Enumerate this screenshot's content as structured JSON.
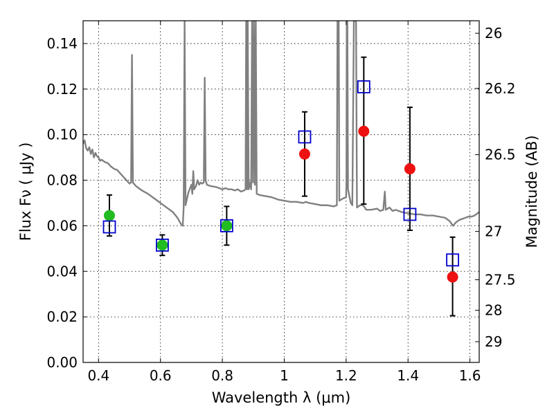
{
  "chart_data": {
    "type": "scatter",
    "xlabel": "Wavelength  λ (μm)",
    "ylabel": "Flux  Fν  ( μJy )",
    "ylabel_right": "Magnitude (AB)",
    "xlim": [
      0.35,
      1.63
    ],
    "ylim": [
      0.0,
      0.15
    ],
    "x_ticks": [
      {
        "value": 0.4,
        "label": "0.4"
      },
      {
        "value": 0.6,
        "label": "0.6"
      },
      {
        "value": 0.8,
        "label": "0.8"
      },
      {
        "value": 1.0,
        "label": "1"
      },
      {
        "value": 1.2,
        "label": "1.2"
      },
      {
        "value": 1.4,
        "label": "1.4"
      },
      {
        "value": 1.6,
        "label": "1.6"
      }
    ],
    "y_ticks": [
      {
        "value": 0.0,
        "label": "0.00"
      },
      {
        "value": 0.02,
        "label": "0.02"
      },
      {
        "value": 0.04,
        "label": "0.04"
      },
      {
        "value": 0.06,
        "label": "0.06"
      },
      {
        "value": 0.08,
        "label": "0.08"
      },
      {
        "value": 0.1,
        "label": "0.10"
      },
      {
        "value": 0.12,
        "label": "0.12"
      },
      {
        "value": 0.14,
        "label": "0.14"
      }
    ],
    "right_ticks": [
      {
        "flux": 0.1445,
        "label": "26"
      },
      {
        "flux": 0.1203,
        "label": "26.2"
      },
      {
        "flux": 0.0912,
        "label": "26.5"
      },
      {
        "flux": 0.0575,
        "label": "27"
      },
      {
        "flux": 0.0363,
        "label": "27.5"
      },
      {
        "flux": 0.0229,
        "label": "28"
      },
      {
        "flux": 0.0091,
        "label": "29"
      }
    ],
    "grid": true,
    "colors": {
      "sed": "#808080",
      "observed_detected": "#22bb22",
      "observed_upper": "#ee1111",
      "model_squares": "#0000cc",
      "error_bars": "#000000"
    },
    "series": [
      {
        "marker": "square",
        "points": [
          {
            "x": 0.435,
            "y": 0.0595
          },
          {
            "x": 0.606,
            "y": 0.0515
          },
          {
            "x": 0.814,
            "y": 0.06
          },
          {
            "x": 1.066,
            "y": 0.099
          },
          {
            "x": 1.257,
            "y": 0.121
          },
          {
            "x": 1.406,
            "y": 0.065
          },
          {
            "x": 1.544,
            "y": 0.045
          }
        ]
      },
      {
        "marker": "circle",
        "color_key": "observed_detected",
        "points": [
          {
            "x": 0.435,
            "y": 0.0645,
            "ylo": 0.0555,
            "yhi": 0.0735
          },
          {
            "x": 0.606,
            "y": 0.0515,
            "ylo": 0.047,
            "yhi": 0.056
          },
          {
            "x": 0.814,
            "y": 0.06,
            "ylo": 0.0515,
            "yhi": 0.0685
          }
        ]
      },
      {
        "marker": "circle",
        "color_key": "observed_upper",
        "points": [
          {
            "x": 1.066,
            "y": 0.0915,
            "ylo": 0.073,
            "yhi": 0.11
          },
          {
            "x": 1.257,
            "y": 0.1015,
            "ylo": 0.0695,
            "yhi": 0.134
          },
          {
            "x": 1.406,
            "y": 0.085,
            "ylo": 0.058,
            "yhi": 0.112
          },
          {
            "x": 1.544,
            "y": 0.0375,
            "ylo": 0.0205,
            "yhi": 0.055
          }
        ]
      }
    ],
    "sed_curve": [
      [
        0.35,
        0.096
      ],
      [
        0.355,
        0.0975
      ],
      [
        0.36,
        0.094
      ],
      [
        0.365,
        0.093
      ],
      [
        0.37,
        0.0945
      ],
      [
        0.375,
        0.0915
      ],
      [
        0.38,
        0.0935
      ],
      [
        0.385,
        0.09
      ],
      [
        0.39,
        0.092
      ],
      [
        0.395,
        0.0905
      ],
      [
        0.4,
        0.09
      ],
      [
        0.405,
        0.0885
      ],
      [
        0.41,
        0.089
      ],
      [
        0.42,
        0.088
      ],
      [
        0.43,
        0.0875
      ],
      [
        0.44,
        0.086
      ],
      [
        0.45,
        0.085
      ],
      [
        0.46,
        0.0845
      ],
      [
        0.47,
        0.083
      ],
      [
        0.48,
        0.0815
      ],
      [
        0.49,
        0.08
      ],
      [
        0.5,
        0.0785
      ],
      [
        0.505,
        0.079
      ],
      [
        0.508,
        0.135
      ],
      [
        0.511,
        0.079
      ],
      [
        0.52,
        0.0775
      ],
      [
        0.54,
        0.0755
      ],
      [
        0.56,
        0.074
      ],
      [
        0.58,
        0.072
      ],
      [
        0.6,
        0.07
      ],
      [
        0.62,
        0.068
      ],
      [
        0.64,
        0.066
      ],
      [
        0.655,
        0.0635
      ],
      [
        0.665,
        0.061
      ],
      [
        0.672,
        0.06
      ],
      [
        0.675,
        0.068
      ],
      [
        0.678,
        0.15
      ],
      [
        0.681,
        0.069
      ],
      [
        0.69,
        0.0745
      ],
      [
        0.7,
        0.078
      ],
      [
        0.703,
        0.074
      ],
      [
        0.706,
        0.084
      ],
      [
        0.709,
        0.076
      ],
      [
        0.715,
        0.0775
      ],
      [
        0.72,
        0.08
      ],
      [
        0.725,
        0.078
      ],
      [
        0.73,
        0.079
      ],
      [
        0.735,
        0.0785
      ],
      [
        0.74,
        0.079
      ],
      [
        0.743,
        0.125
      ],
      [
        0.746,
        0.08
      ],
      [
        0.75,
        0.078
      ],
      [
        0.76,
        0.0775
      ],
      [
        0.78,
        0.077
      ],
      [
        0.8,
        0.076
      ],
      [
        0.81,
        0.0765
      ],
      [
        0.82,
        0.076
      ],
      [
        0.83,
        0.076
      ],
      [
        0.84,
        0.0755
      ],
      [
        0.85,
        0.076
      ],
      [
        0.86,
        0.075
      ],
      [
        0.87,
        0.0755
      ],
      [
        0.875,
        0.076
      ],
      [
        0.877,
        0.15
      ],
      [
        0.88,
        0.076
      ],
      [
        0.882,
        0.15
      ],
      [
        0.885,
        0.076
      ],
      [
        0.89,
        0.079
      ],
      [
        0.893,
        0.076
      ],
      [
        0.896,
        0.15
      ],
      [
        0.899,
        0.079
      ],
      [
        0.902,
        0.15
      ],
      [
        0.905,
        0.078
      ],
      [
        0.908,
        0.15
      ],
      [
        0.911,
        0.074
      ],
      [
        0.92,
        0.0735
      ],
      [
        0.94,
        0.073
      ],
      [
        0.96,
        0.0725
      ],
      [
        0.98,
        0.0715
      ],
      [
        1.0,
        0.071
      ],
      [
        1.02,
        0.0705
      ],
      [
        1.04,
        0.0705
      ],
      [
        1.06,
        0.07
      ],
      [
        1.07,
        0.0705
      ],
      [
        1.08,
        0.07
      ],
      [
        1.1,
        0.0695
      ],
      [
        1.12,
        0.069
      ],
      [
        1.14,
        0.069
      ],
      [
        1.16,
        0.0685
      ],
      [
        1.17,
        0.069
      ],
      [
        1.172,
        0.15
      ],
      [
        1.176,
        0.15
      ],
      [
        1.178,
        0.071
      ],
      [
        1.19,
        0.072
      ],
      [
        1.2,
        0.0725
      ],
      [
        1.201,
        0.08
      ],
      [
        1.202,
        0.15
      ],
      [
        1.204,
        0.15
      ],
      [
        1.206,
        0.076
      ],
      [
        1.215,
        0.07
      ],
      [
        1.22,
        0.069
      ],
      [
        1.225,
        0.15
      ],
      [
        1.232,
        0.15
      ],
      [
        1.235,
        0.068
      ],
      [
        1.245,
        0.069
      ],
      [
        1.255,
        0.069
      ],
      [
        1.265,
        0.067
      ],
      [
        1.28,
        0.067
      ],
      [
        1.3,
        0.0675
      ],
      [
        1.31,
        0.0665
      ],
      [
        1.32,
        0.067
      ],
      [
        1.325,
        0.075
      ],
      [
        1.328,
        0.067
      ],
      [
        1.34,
        0.068
      ],
      [
        1.35,
        0.0665
      ],
      [
        1.36,
        0.067
      ],
      [
        1.37,
        0.0665
      ],
      [
        1.38,
        0.066
      ],
      [
        1.4,
        0.0655
      ],
      [
        1.42,
        0.065
      ],
      [
        1.44,
        0.065
      ],
      [
        1.46,
        0.0645
      ],
      [
        1.48,
        0.0645
      ],
      [
        1.5,
        0.064
      ],
      [
        1.52,
        0.0635
      ],
      [
        1.535,
        0.062
      ],
      [
        1.545,
        0.06
      ],
      [
        1.555,
        0.0615
      ],
      [
        1.565,
        0.0625
      ],
      [
        1.575,
        0.063
      ],
      [
        1.585,
        0.0635
      ],
      [
        1.595,
        0.064
      ],
      [
        1.605,
        0.064
      ],
      [
        1.615,
        0.0645
      ],
      [
        1.625,
        0.0655
      ],
      [
        1.63,
        0.066
      ]
    ]
  }
}
